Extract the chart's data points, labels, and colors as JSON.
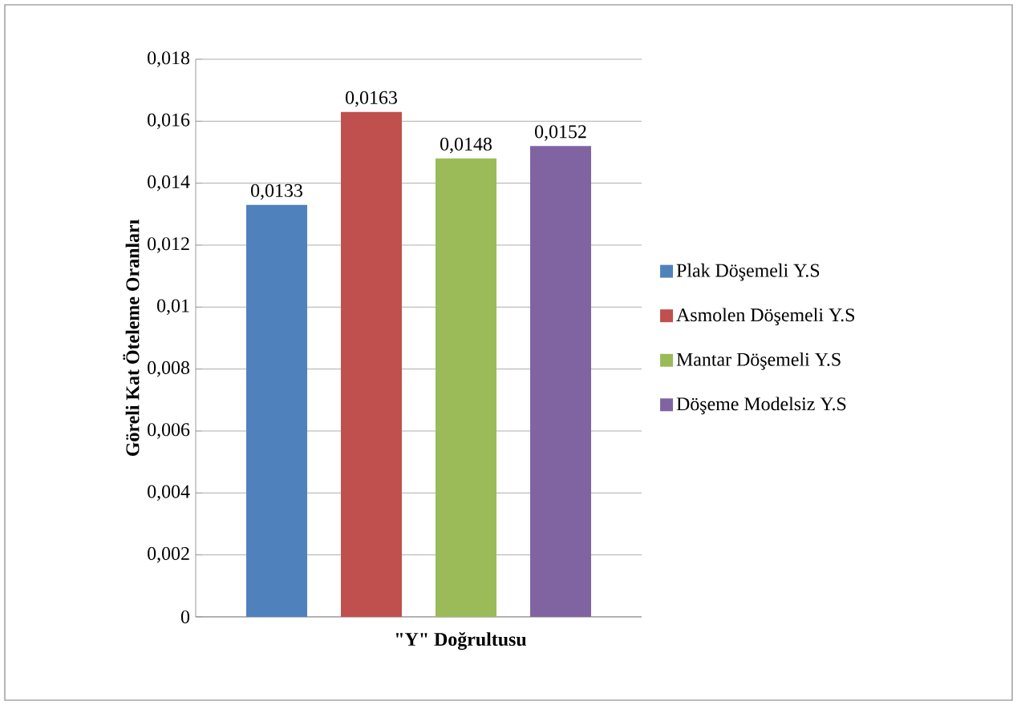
{
  "chart_data": {
    "type": "bar",
    "xlabel": "\"Y\" Doğrultusu",
    "ylabel": "Göreli Kat Öteleme Oranları",
    "categories": [
      null
    ],
    "series": [
      {
        "name": "Plak Döşemeli Y.S",
        "color": "#4f81bd",
        "values": [
          0.0133
        ],
        "value_labels": [
          "0,0133"
        ]
      },
      {
        "name": "Asmolen Döşemeli Y.S",
        "color": "#c0504d",
        "values": [
          0.0163
        ],
        "value_labels": [
          "0,0163"
        ]
      },
      {
        "name": "Mantar Döşemeli Y.S",
        "color": "#9bbb59",
        "values": [
          0.0148
        ],
        "value_labels": [
          "0,0148"
        ]
      },
      {
        "name": "Döşeme Modelsiz Y.S",
        "color": "#8064a2",
        "values": [
          0.0152
        ],
        "value_labels": [
          "0,0152"
        ]
      }
    ],
    "ylim": [
      0,
      0.018
    ],
    "yticks": [
      0,
      {
        "value": 0.002,
        "label": "0,002"
      },
      {
        "value": 0.004,
        "label": "0,004"
      },
      {
        "value": 0.006,
        "label": "0,006"
      },
      {
        "value": 0.008,
        "label": "0,008"
      },
      {
        "value": 0.01,
        "label": "0,01"
      },
      {
        "value": 0.012,
        "label": "0,012"
      },
      {
        "value": 0.014,
        "label": "0,014"
      },
      {
        "value": 0.016,
        "label": "0,016"
      },
      {
        "value": 0.018,
        "label": "0,018"
      }
    ],
    "grid": "y",
    "legend": "right"
  }
}
